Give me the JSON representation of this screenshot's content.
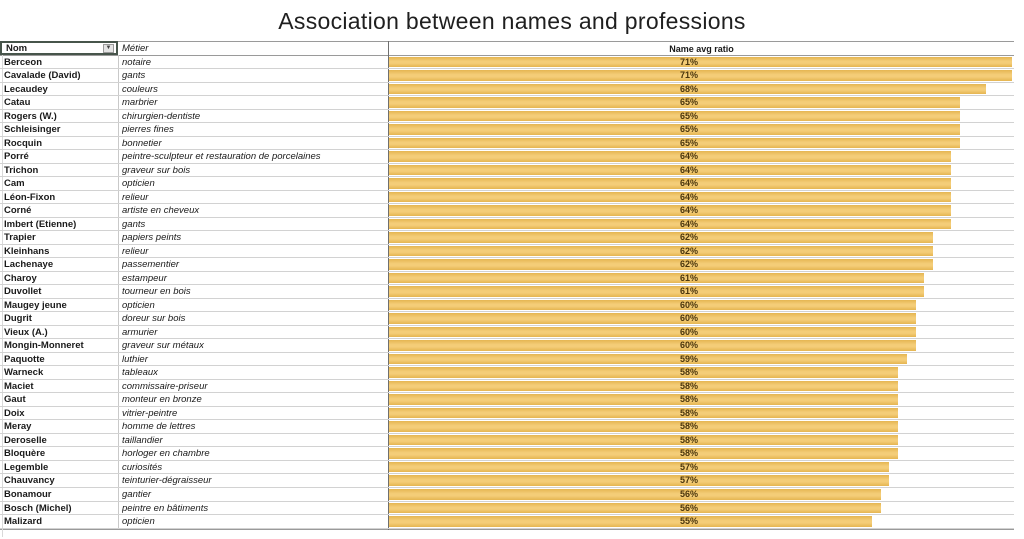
{
  "title": "Association between names and professions",
  "icons": {
    "filter_arrow": "▼"
  },
  "colors": {
    "bar_fill": "#efc364",
    "bar_edge": "#e5b551",
    "header_cell_border": "#47554b",
    "grid_line": "#d2d2d2",
    "divider_line": "#6f6f6f",
    "ratio_text": "#4a350c"
  },
  "table": {
    "columns": {
      "name": "Nom",
      "profession": "Métier",
      "ratio": "Name avg ratio"
    },
    "rows": [
      {
        "name": "Berceon",
        "profession": "notaire",
        "ratio": "71%",
        "value": 71
      },
      {
        "name": "Cavalade (David)",
        "profession": "gants",
        "ratio": "71%",
        "value": 71
      },
      {
        "name": "Lecaudey",
        "profession": "couleurs",
        "ratio": "68%",
        "value": 68
      },
      {
        "name": "Catau",
        "profession": "marbrier",
        "ratio": "65%",
        "value": 65
      },
      {
        "name": "Rogers (W.)",
        "profession": "chirurgien-dentiste",
        "ratio": "65%",
        "value": 65
      },
      {
        "name": "Schleisinger",
        "profession": "pierres fines",
        "ratio": "65%",
        "value": 65
      },
      {
        "name": "Rocquin",
        "profession": "bonnetier",
        "ratio": "65%",
        "value": 65
      },
      {
        "name": "Porré",
        "profession": "peintre-sculpteur et restauration de porcelaines",
        "ratio": "64%",
        "value": 64
      },
      {
        "name": "Trichon",
        "profession": "graveur sur bois",
        "ratio": "64%",
        "value": 64
      },
      {
        "name": "Cam",
        "profession": "opticien",
        "ratio": "64%",
        "value": 64
      },
      {
        "name": "Léon-Fixon",
        "profession": "relieur",
        "ratio": "64%",
        "value": 64
      },
      {
        "name": "Corné",
        "profession": "artiste en cheveux",
        "ratio": "64%",
        "value": 64
      },
      {
        "name": "Imbert (Etienne)",
        "profession": "gants",
        "ratio": "64%",
        "value": 64
      },
      {
        "name": "Trapier",
        "profession": "papiers peints",
        "ratio": "62%",
        "value": 62
      },
      {
        "name": "Kleinhans",
        "profession": "relieur",
        "ratio": "62%",
        "value": 62
      },
      {
        "name": "Lachenaye",
        "profession": "passementier",
        "ratio": "62%",
        "value": 62
      },
      {
        "name": "Charoy",
        "profession": "estampeur",
        "ratio": "61%",
        "value": 61
      },
      {
        "name": "Duvollet",
        "profession": "tourneur en bois",
        "ratio": "61%",
        "value": 61
      },
      {
        "name": "Maugey jeune",
        "profession": "opticien",
        "ratio": "60%",
        "value": 60
      },
      {
        "name": "Dugrit",
        "profession": "doreur sur bois",
        "ratio": "60%",
        "value": 60
      },
      {
        "name": "Vieux (A.)",
        "profession": "armurier",
        "ratio": "60%",
        "value": 60
      },
      {
        "name": "Mongin-Monneret",
        "profession": "graveur sur métaux",
        "ratio": "60%",
        "value": 60
      },
      {
        "name": "Paquotte",
        "profession": "luthier",
        "ratio": "59%",
        "value": 59
      },
      {
        "name": "Warneck",
        "profession": "tableaux",
        "ratio": "58%",
        "value": 58
      },
      {
        "name": "Maciet",
        "profession": "commissaire-priseur",
        "ratio": "58%",
        "value": 58
      },
      {
        "name": "Gaut",
        "profession": "monteur en bronze",
        "ratio": "58%",
        "value": 58
      },
      {
        "name": "Doix",
        "profession": "vitrier-peintre",
        "ratio": "58%",
        "value": 58
      },
      {
        "name": "Meray",
        "profession": "homme de lettres",
        "ratio": "58%",
        "value": 58
      },
      {
        "name": "Deroselle",
        "profession": "taillandier",
        "ratio": "58%",
        "value": 58
      },
      {
        "name": "Bloquère",
        "profession": "horloger en chambre",
        "ratio": "58%",
        "value": 58
      },
      {
        "name": "Legemble",
        "profession": "curiosités",
        "ratio": "57%",
        "value": 57
      },
      {
        "name": "Chauvancy",
        "profession": "teinturier-dégraisseur",
        "ratio": "57%",
        "value": 57
      },
      {
        "name": "Bonamour",
        "profession": "gantier",
        "ratio": "56%",
        "value": 56
      },
      {
        "name": "Bosch (Michel)",
        "profession": "peintre en bâtiments",
        "ratio": "56%",
        "value": 56
      },
      {
        "name": "Malizard",
        "profession": "opticien",
        "ratio": "55%",
        "value": 55
      }
    ]
  },
  "chart_data": {
    "type": "bar",
    "orientation": "horizontal",
    "title": "Association between names and professions",
    "xlabel": "Name avg ratio",
    "ylabel": "Nom",
    "xlim": [
      0,
      71.5
    ],
    "grid": false,
    "legend": "none",
    "categories": [
      "Berceon",
      "Cavalade (David)",
      "Lecaudey",
      "Catau",
      "Rogers (W.)",
      "Schleisinger",
      "Rocquin",
      "Porré",
      "Trichon",
      "Cam",
      "Léon-Fixon",
      "Corné",
      "Imbert (Etienne)",
      "Trapier",
      "Kleinhans",
      "Lachenaye",
      "Charoy",
      "Duvollet",
      "Maugey jeune",
      "Dugrit",
      "Vieux (A.)",
      "Mongin-Monneret",
      "Paquotte",
      "Warneck",
      "Maciet",
      "Gaut",
      "Doix",
      "Meray",
      "Deroselle",
      "Bloquère",
      "Legemble",
      "Chauvancy",
      "Bonamour",
      "Bosch (Michel)",
      "Malizard"
    ],
    "category_professions": [
      "notaire",
      "gants",
      "couleurs",
      "marbrier",
      "chirurgien-dentiste",
      "pierres fines",
      "bonnetier",
      "peintre-sculpteur et restauration de porcelaines",
      "graveur sur bois",
      "opticien",
      "relieur",
      "artiste en cheveux",
      "gants",
      "papiers peints",
      "relieur",
      "passementier",
      "estampeur",
      "tourneur en bois",
      "opticien",
      "doreur sur bois",
      "armurier",
      "graveur sur métaux",
      "luthier",
      "tableaux",
      "commissaire-priseur",
      "monteur en bronze",
      "vitrier-peintre",
      "homme de lettres",
      "taillandier",
      "horloger en chambre",
      "curiosités",
      "teinturier-dégraisseur",
      "gantier",
      "peintre en bâtiments",
      "opticien"
    ],
    "values": [
      71,
      71,
      68,
      65,
      65,
      65,
      65,
      64,
      64,
      64,
      64,
      64,
      64,
      62,
      62,
      62,
      61,
      61,
      60,
      60,
      60,
      60,
      59,
      58,
      58,
      58,
      58,
      58,
      58,
      58,
      57,
      57,
      56,
      56,
      55
    ],
    "value_unit": "%"
  }
}
